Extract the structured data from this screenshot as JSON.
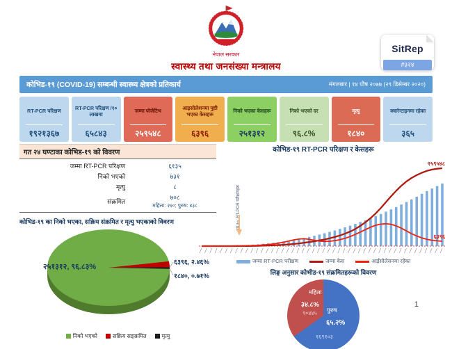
{
  "header": {
    "government": "नेपाल सरकार",
    "ministry": "स्वास्थ्य तथा जनसंख्या मन्त्रालय",
    "sitrep_label": "SitRep",
    "sitrep_number": "#३२४"
  },
  "title_bar": {
    "title": "कोभिड-१९ (COVID-19) सम्बन्धी स्वास्थ्य क्षेत्रको प्रतिकार्य",
    "date": "मंगलबार | १४ पौष २०७७ (२९ डिसेम्बर २०२०)"
  },
  "stat_cards": [
    {
      "label": "RT-PCR परिक्षण",
      "value": "१९२१३६७",
      "bg": "#BDD7EE",
      "label_color": "#1F4E79",
      "value_color": "#1F4E79"
    },
    {
      "label": "RT-PCR परिक्षण /१० लाखमा",
      "value": "६५८४३",
      "bg": "#BDD7EE",
      "label_color": "#1F4E79",
      "value_color": "#1F4E79"
    },
    {
      "label": "जम्मा पोजेटिभ",
      "value": "२५९५४८",
      "bg": "#DF6A58",
      "label_color": "#641102",
      "value_color": "#FFFFFF"
    },
    {
      "label": "आइसोलेशनमा पुष्टी भएका केसहरू",
      "value": "६३९६",
      "bg": "#F0AE4E",
      "label_color": "#7E2100",
      "value_color": "#8B1A00"
    },
    {
      "label": "निको भएका केसहरू",
      "value": "२५१३१२",
      "bg": "#8CCF63",
      "label_color": "#1E4620",
      "value_color": "#17375E"
    },
    {
      "label": "निको भएको दर",
      "value": "९६.८%",
      "bg": "#C6E0B4",
      "label_color": "#375623",
      "value_color": "#375623"
    },
    {
      "label": "मृत्यु",
      "value": "१८४०",
      "bg": "#DC6B55",
      "label_color": "#FFFFFF",
      "value_color": "#FFFFFF"
    },
    {
      "label": "क्वारेन्टाइनमा रहेका",
      "value": "३६५",
      "bg": "#BDD7EE",
      "label_color": "#1F4E79",
      "value_color": "#1F4E79"
    }
  ],
  "daily_table": {
    "title": "गत २४ घण्टाका कोभिड-१९ को विवरण",
    "rows": [
      {
        "label": "जम्मा RT-PCR परिक्षण",
        "value": "६१३५",
        "sub": ""
      },
      {
        "label": "निको भएको",
        "value": "७३१",
        "sub": ""
      },
      {
        "label": "मृत्यु",
        "value": "८",
        "sub": ""
      },
      {
        "label": "संक्रमित",
        "value": "७०८",
        "sub": "महिला: २७०; पुरुष: ४३८"
      }
    ]
  },
  "page_number": "1",
  "chart_data": [
    {
      "id": "recovery-active-death-pie",
      "type": "pie",
      "style": "3d",
      "title": "कोभिड-१९ का निको भएका, सक्रिय संक्रमित र मृत्यु भएकाको विवरण",
      "slices": [
        {
          "label": "निको भएको",
          "value": 251312,
          "pct": 96.83,
          "color": "#70AD47",
          "data_label": "२५१३१२, ९६.८३%"
        },
        {
          "label": "सक्रिय सङ्क्रमित",
          "value": 6396,
          "pct": 2.46,
          "color": "#C00000",
          "data_label": "६३९६, २.४६%"
        },
        {
          "label": "मृत्यु",
          "value": 1840,
          "pct": 0.71,
          "color": "#1A1A1A",
          "data_label": "१८४०, ०.७१%"
        }
      ],
      "legend_position": "bottom"
    },
    {
      "id": "tests-and-cases-combo",
      "type": "bar+line",
      "title": "कोभिड-१९ RT-PCR परिक्षण र केसहरू",
      "annotation": "थप १०: RT-PCR परीक्षणहरू",
      "x_axis_note": "~48 date periods, tiny rotated illegible labels",
      "n_periods": 48,
      "bar_series": {
        "name": "जम्मा RT-PCR परीक्षण",
        "color": "#7FAEDC",
        "estimated_max_value": 1921367,
        "values_pct_of_max": [
          0,
          0,
          0,
          0,
          0,
          0.3,
          0.6,
          1,
          1.4,
          1.9,
          2.4,
          3,
          3.7,
          4.5,
          5.4,
          6.4,
          7.5,
          8.7,
          10,
          11.5,
          13,
          14.7,
          16.5,
          18.4,
          20.5,
          22.7,
          25,
          27.5,
          30,
          32.7,
          35.5,
          38.5,
          41.5,
          44.7,
          48,
          51.5,
          55,
          58.7,
          62.5,
          66.5,
          70.5,
          74.7,
          79,
          83.5,
          88,
          92,
          96,
          100
        ]
      },
      "line_series": [
        {
          "name": "जम्मा केस",
          "color": "#AE1C10",
          "end_label": "२५९५४८",
          "end_value": 259548,
          "values_pct_of_max": [
            0,
            0,
            0,
            0,
            0,
            0,
            0,
            0.1,
            0.1,
            0.2,
            0.3,
            0.4,
            0.6,
            0.8,
            1,
            1.3,
            1.7,
            2.2,
            2.8,
            3.5,
            4.3,
            5.2,
            6.2,
            7.3,
            8.5,
            10,
            11.7,
            13.7,
            16,
            18.7,
            22,
            26,
            30.7,
            36,
            42,
            49,
            56.5,
            64,
            71,
            77.5,
            83,
            87.5,
            91.2,
            94.2,
            96.6,
            98.3,
            99.4,
            100
          ]
        },
        {
          "name": "आईसोलेसनमा रहेका",
          "color": "#F02011",
          "end_label": "६३९६",
          "end_value": 6396,
          "values_pct_of_max": [
            0,
            0,
            0,
            0,
            0,
            0,
            0,
            0.1,
            0.1,
            0.2,
            0.3,
            0.4,
            0.6,
            0.8,
            1.1,
            1.5,
            2,
            2.6,
            3.2,
            3.6,
            3.8,
            3.5,
            3,
            2.6,
            2.4,
            2.5,
            2.8,
            3.3,
            4,
            4.9,
            6,
            7.2,
            8.5,
            9.7,
            10.7,
            11.3,
            11.5,
            11.2,
            10.4,
            9.2,
            7.8,
            6.4,
            5.2,
            4.2,
            3.5,
            3,
            2.7,
            2.5
          ]
        }
      ],
      "legend_position": "bottom"
    },
    {
      "id": "gender-pie",
      "type": "pie",
      "title": "लिङ्ग अनुसार कोभीड-१९ संक्रमितहरूको विवरण",
      "slices": [
        {
          "label": "महिला",
          "value": 90445,
          "pct": 34.8,
          "color": "#C0504D",
          "pct_label": "३४.८%",
          "count_label": "९०४४५"
        },
        {
          "label": "पुरुष",
          "value": 169103,
          "pct": 65.2,
          "color": "#4472C4",
          "pct_label": "६५.२%",
          "count_label": "१६९१०३"
        }
      ],
      "legend_position": "none"
    }
  ]
}
